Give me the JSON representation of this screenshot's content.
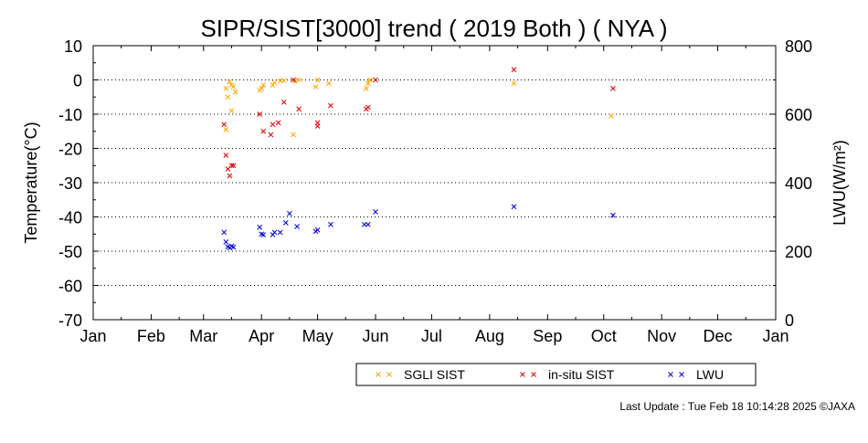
{
  "footer": {
    "last_update": "Last Update : Tue Feb 18 10:14:28 2025 ©JAXA"
  },
  "chart_data": {
    "type": "scatter",
    "title": "SIPR/SIST[3000] trend ( 2019 Both ) ( NYA )",
    "xlabel": "",
    "ylabel": "Temperature(°C)",
    "y2label": "LWU(W/m²)",
    "xlim": [
      "2019-01-01",
      "2020-01-01"
    ],
    "ylim": [
      -70,
      10
    ],
    "y2lim": [
      0,
      800
    ],
    "grid": "y-dotted",
    "legend_position": "bottom",
    "x_tick_labels": [
      "Jan",
      "Feb",
      "Mar",
      "Apr",
      "May",
      "Jun",
      "Jul",
      "Aug",
      "Sep",
      "Oct",
      "Nov",
      "Dec",
      "Jan"
    ],
    "y_tick_labels": [
      "10",
      "0",
      "-10",
      "-20",
      "-30",
      "-40",
      "-50",
      "-60",
      "-70"
    ],
    "y2_tick_labels": [
      "800",
      "600",
      "400",
      "200",
      "0"
    ],
    "series": [
      {
        "name": "SGLI SIST",
        "axis": "left",
        "color": "#ffa500",
        "marker": "x",
        "points": [
          [
            "2019-03-13",
            -2.5
          ],
          [
            "2019-03-13",
            -14.5
          ],
          [
            "2019-03-14",
            -5.0
          ],
          [
            "2019-03-15",
            -0.5
          ],
          [
            "2019-03-16",
            -9.0
          ],
          [
            "2019-03-16",
            -1.5
          ],
          [
            "2019-03-17",
            -2.0
          ],
          [
            "2019-03-18",
            -3.5
          ],
          [
            "2019-03-31",
            -3.0
          ],
          [
            "2019-04-01",
            -2.5
          ],
          [
            "2019-04-02",
            -1.5
          ],
          [
            "2019-04-07",
            -1.5
          ],
          [
            "2019-04-08",
            -0.8
          ],
          [
            "2019-04-11",
            -0.3
          ],
          [
            "2019-04-13",
            -0.2
          ],
          [
            "2019-04-18",
            -16.0
          ],
          [
            "2019-04-19",
            -0.3
          ],
          [
            "2019-04-21",
            0.0
          ],
          [
            "2019-04-30",
            -2.0
          ],
          [
            "2019-05-01",
            0.0
          ],
          [
            "2019-05-07",
            -1.0
          ],
          [
            "2019-05-27",
            -2.5
          ],
          [
            "2019-05-28",
            -1.0
          ],
          [
            "2019-05-29",
            0.0
          ],
          [
            "2019-08-14",
            -1.0
          ],
          [
            "2019-10-05",
            -10.5
          ]
        ]
      },
      {
        "name": "in-situ SIST",
        "axis": "left",
        "color": "#e00000",
        "marker": "x",
        "points": [
          [
            "2019-03-12",
            -13.0
          ],
          [
            "2019-03-13",
            -22.0
          ],
          [
            "2019-03-14",
            -26.0
          ],
          [
            "2019-03-15",
            -28.0
          ],
          [
            "2019-03-16",
            -25.0
          ],
          [
            "2019-03-17",
            -25.0
          ],
          [
            "2019-03-31",
            -10.0
          ],
          [
            "2019-04-02",
            -15.0
          ],
          [
            "2019-04-06",
            -16.0
          ],
          [
            "2019-04-07",
            -13.0
          ],
          [
            "2019-04-10",
            -12.5
          ],
          [
            "2019-04-13",
            -6.5
          ],
          [
            "2019-04-18",
            0.0
          ],
          [
            "2019-04-21",
            -8.5
          ],
          [
            "2019-05-01",
            -12.5
          ],
          [
            "2019-05-01",
            -13.5
          ],
          [
            "2019-05-08",
            -7.5
          ],
          [
            "2019-05-27",
            -8.5
          ],
          [
            "2019-05-28",
            -8.0
          ],
          [
            "2019-06-01",
            0.0
          ],
          [
            "2019-08-14",
            3.0
          ],
          [
            "2019-10-06",
            -2.5
          ]
        ]
      },
      {
        "name": "LWU",
        "axis": "right",
        "color": "#0000e0",
        "marker": "x",
        "points": [
          [
            "2019-03-12",
            255
          ],
          [
            "2019-03-13",
            227
          ],
          [
            "2019-03-14",
            213
          ],
          [
            "2019-03-15",
            210
          ],
          [
            "2019-03-16",
            215
          ],
          [
            "2019-03-17",
            212
          ],
          [
            "2019-03-31",
            270
          ],
          [
            "2019-04-01",
            250
          ],
          [
            "2019-04-02",
            248
          ],
          [
            "2019-04-07",
            248
          ],
          [
            "2019-04-08",
            255
          ],
          [
            "2019-04-11",
            255
          ],
          [
            "2019-04-14",
            283
          ],
          [
            "2019-04-16",
            310
          ],
          [
            "2019-04-20",
            272
          ],
          [
            "2019-04-30",
            258
          ],
          [
            "2019-05-01",
            262
          ],
          [
            "2019-05-08",
            278
          ],
          [
            "2019-05-26",
            278
          ],
          [
            "2019-05-28",
            278
          ],
          [
            "2019-06-01",
            315
          ],
          [
            "2019-08-14",
            330
          ],
          [
            "2019-10-06",
            305
          ]
        ]
      }
    ]
  }
}
